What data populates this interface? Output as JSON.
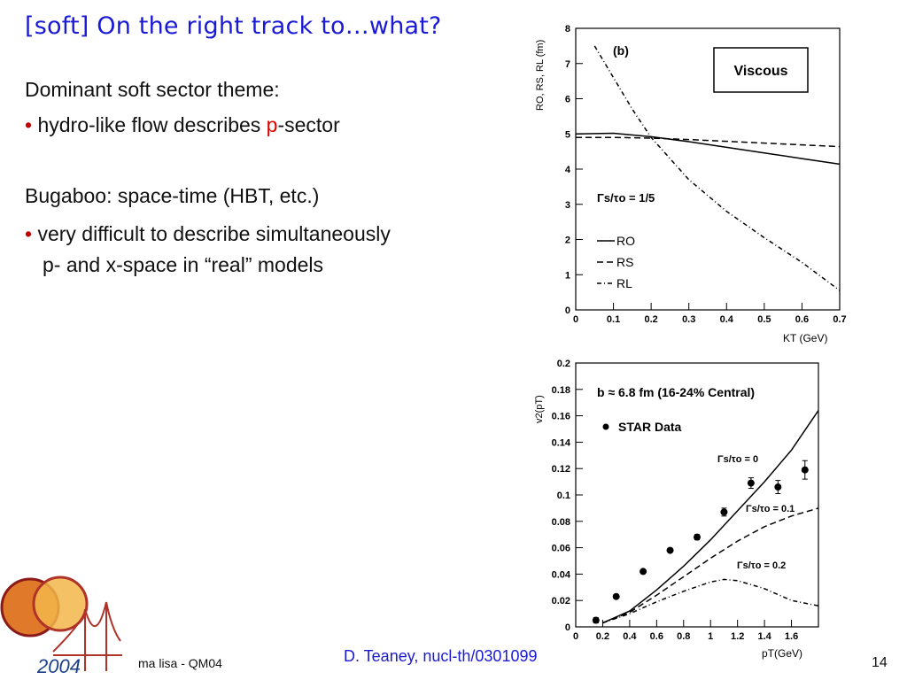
{
  "slide": {
    "title": "[soft] On the right track to…what?",
    "line1": "Dominant soft sector theme:",
    "bullet_char": "•",
    "bullet1_pre": "hydro-like flow describes ",
    "bullet1_red": "p",
    "bullet1_post": "-sector",
    "line2": "Bugaboo: space-time (HBT, etc.)",
    "bullet2_l1": "very difficult to describe simultaneously",
    "bullet2_l2": "p- and x-space in “real” models",
    "citation": "D. Teaney, nucl-th/0301099",
    "footer_left": "ma lisa - QM04",
    "page_number": "14",
    "logo_year": "2004"
  },
  "chart_data": [
    {
      "type": "line",
      "panel_label": "(b)",
      "box_label": "Viscous",
      "annotation": "Γs/τo = 1/5",
      "ylabel": "RO, RS, RL (fm)",
      "xlabel": "KT (GeV)",
      "xlim": [
        0,
        0.7
      ],
      "ylim": [
        0,
        8
      ],
      "xticks": [
        "0",
        "0.1",
        "0.2",
        "0.3",
        "0.4",
        "0.5",
        "0.6",
        "0.7"
      ],
      "yticks": [
        "0",
        "1",
        "2",
        "3",
        "4",
        "5",
        "6",
        "7",
        "8"
      ],
      "legend_position": "bottom-left",
      "series": [
        {
          "name": "RO",
          "style": "solid",
          "x": [
            0.0,
            0.1,
            0.2,
            0.3,
            0.4,
            0.5,
            0.6,
            0.7
          ],
          "y": [
            5.0,
            5.02,
            4.92,
            4.78,
            4.62,
            4.46,
            4.3,
            4.14
          ]
        },
        {
          "name": "RS",
          "style": "dashed",
          "x": [
            0.0,
            0.1,
            0.2,
            0.3,
            0.4,
            0.5,
            0.6,
            0.7
          ],
          "y": [
            4.9,
            4.9,
            4.88,
            4.84,
            4.79,
            4.74,
            4.69,
            4.64
          ]
        },
        {
          "name": "RL",
          "style": "dashdot",
          "x": [
            0.05,
            0.1,
            0.15,
            0.2,
            0.3,
            0.4,
            0.5,
            0.6,
            0.7
          ],
          "y": [
            7.5,
            6.6,
            5.7,
            4.9,
            3.7,
            2.8,
            2.05,
            1.35,
            0.55
          ]
        }
      ]
    },
    {
      "type": "scatter",
      "annotation_top": "b ≈ 6.8 fm (16-24% Central)",
      "legend_label": "STAR Data",
      "legend_position": "top-left",
      "ylabel": "v2(pT)",
      "xlabel": "pT(GeV)",
      "xlim": [
        0,
        1.8
      ],
      "ylim": [
        0,
        0.2
      ],
      "xticks": [
        "0",
        "0.2",
        "0.4",
        "0.6",
        "0.8",
        "1",
        "1.2",
        "1.4",
        "1.6"
      ],
      "yticks": [
        "0",
        "0.02",
        "0.04",
        "0.06",
        "0.08",
        "0.1",
        "0.12",
        "0.14",
        "0.16",
        "0.18",
        "0.2"
      ],
      "curve_labels": [
        "Γs/τo = 0",
        "Γs/τo = 0.1",
        "Γs/τo = 0.2"
      ],
      "data_points": {
        "x": [
          0.15,
          0.3,
          0.5,
          0.7,
          0.9,
          1.1,
          1.3,
          1.5,
          1.7
        ],
        "y": [
          0.005,
          0.023,
          0.042,
          0.058,
          0.068,
          0.087,
          0.109,
          0.106,
          0.119
        ],
        "err": [
          0.002,
          0.001,
          0.001,
          0.001,
          0.002,
          0.003,
          0.004,
          0.005,
          0.007
        ]
      },
      "series": [
        {
          "style": "solid",
          "x": [
            0.2,
            0.4,
            0.6,
            0.8,
            1.0,
            1.2,
            1.4,
            1.6,
            1.8
          ],
          "y": [
            0.003,
            0.012,
            0.028,
            0.046,
            0.066,
            0.088,
            0.11,
            0.134,
            0.164
          ]
        },
        {
          "style": "dashed",
          "x": [
            0.2,
            0.4,
            0.6,
            0.8,
            1.0,
            1.2,
            1.4,
            1.6,
            1.8
          ],
          "y": [
            0.003,
            0.011,
            0.024,
            0.038,
            0.052,
            0.065,
            0.076,
            0.084,
            0.09
          ]
        },
        {
          "style": "dashdot",
          "x": [
            0.2,
            0.4,
            0.6,
            0.8,
            1.0,
            1.1,
            1.2,
            1.4,
            1.6,
            1.8
          ],
          "y": [
            0.003,
            0.01,
            0.019,
            0.027,
            0.034,
            0.036,
            0.035,
            0.029,
            0.02,
            0.016
          ]
        }
      ]
    }
  ]
}
